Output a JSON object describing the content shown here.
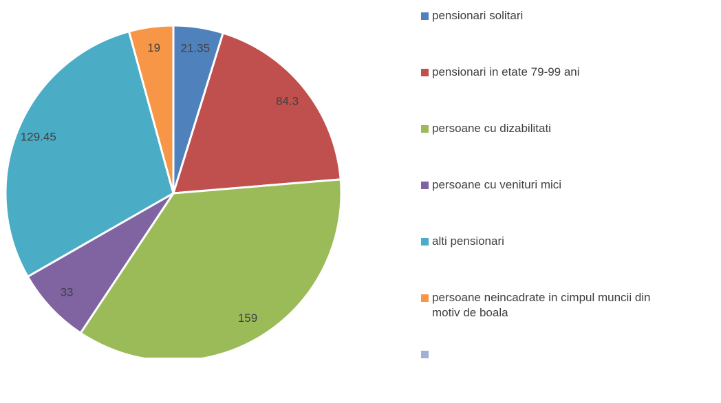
{
  "chart_data": {
    "type": "pie",
    "categories": [
      "pensionari solitari",
      "pensionari in etate 79-99 ani",
      "persoane cu dizabilitati",
      "persoane cu venituri mici",
      "alti pensionari",
      "persoane neincadrate in cimpul muncii din motiv de boala",
      null
    ],
    "values": [
      21.35,
      84.3,
      159,
      33,
      129.45,
      19,
      null
    ],
    "colors": [
      "#4f81bd",
      "#c0504d",
      "#9bbb59",
      "#8064a2",
      "#4bacc6",
      "#f79646",
      "#9fb1d6"
    ],
    "legend": "right"
  }
}
